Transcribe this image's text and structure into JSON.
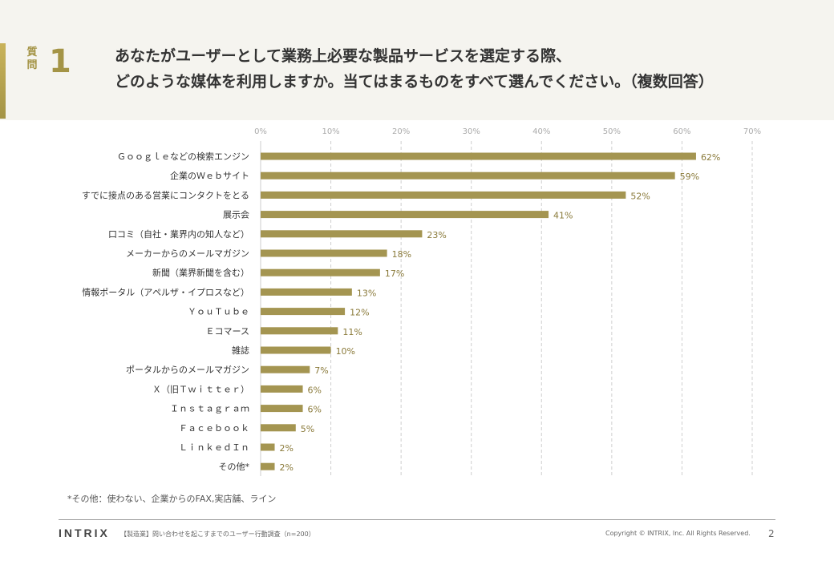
{
  "header": {
    "question_label": "質問",
    "question_number": "1",
    "question_lines": [
      "あなたがユーザーとして業務上必要な製品サービスを選定する際、",
      "どのような媒体を利用しますか。当てはまるものをすべて選んでください。（複数回答）"
    ]
  },
  "chart_data": {
    "type": "bar",
    "orientation": "horizontal",
    "categories": [
      "Ｇｏｏｇｌｅなどの検索エンジン",
      "企業のＷｅｂサイト",
      "すでに接点のある営業にコンタクトをとる",
      "展示会",
      "口コミ（自社・業界内の知人など）",
      "メーカーからのメールマガジン",
      "新聞（業界新聞を含む）",
      "情報ポータル（アペルザ・イプロスなど）",
      "ＹｏｕＴｕｂｅ",
      "Ｅコマース",
      "雑誌",
      "ポータルからのメールマガジン",
      "Ｘ（旧Ｔｗｉｔｔｅｒ）",
      "Ｉｎｓｔａｇｒａｍ",
      "Ｆａｃｅｂｏｏｋ",
      "ＬｉｎｋｅｄＩｎ",
      "その他*"
    ],
    "values": [
      62,
      59,
      52,
      41,
      23,
      18,
      17,
      13,
      12,
      11,
      10,
      7,
      6,
      6,
      5,
      2,
      2
    ],
    "value_labels": [
      "62%",
      "59%",
      "52%",
      "41%",
      "23%",
      "18%",
      "17%",
      "13%",
      "12%",
      "11%",
      "10%",
      "7%",
      "6%",
      "6%",
      "5%",
      "2%",
      "2%"
    ],
    "xlim": [
      0,
      70
    ],
    "ticks": [
      0,
      10,
      20,
      30,
      40,
      50,
      60,
      70
    ],
    "tick_labels": [
      "0%",
      "10%",
      "20%",
      "30%",
      "40%",
      "50%",
      "60%",
      "70%"
    ],
    "grid": true,
    "bar_color": "#a49551",
    "label_color": "#8a7a3a",
    "title": "",
    "xlabel": "",
    "ylabel": ""
  },
  "footnote": "*その他：使わない、企業からのFAX,実店舗、ライン",
  "footer": {
    "logo": "INTRIX",
    "survey": "【製造業】問い合わせを起こすまでのユーザー行動調査（n=200）",
    "copyright": "Copyright © INTRIX, Inc. All Rights Reserved.",
    "page_number": "2"
  }
}
